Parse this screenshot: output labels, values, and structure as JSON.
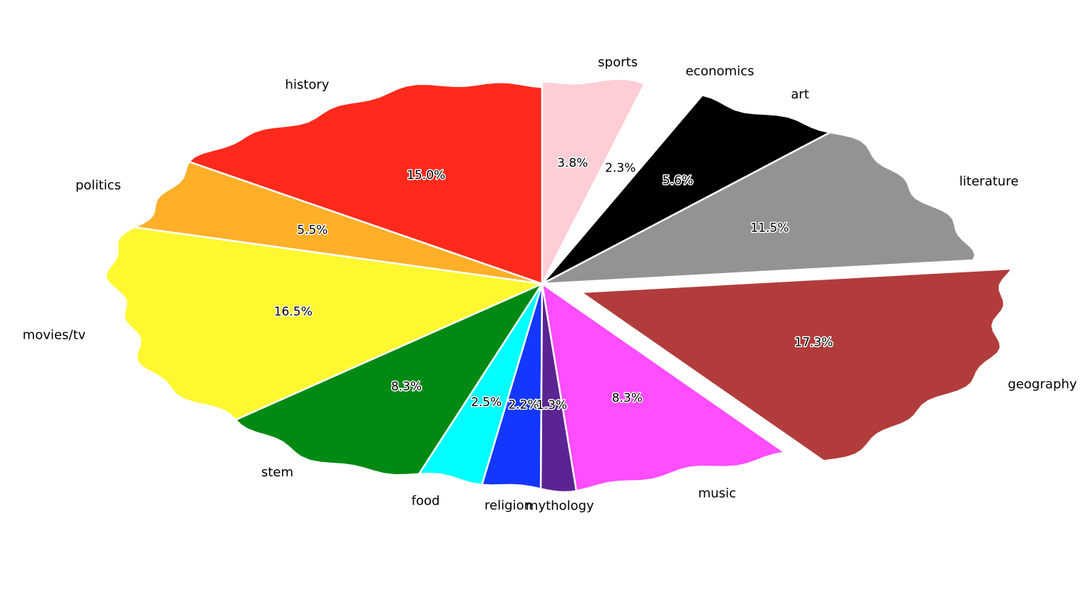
{
  "chart_data": {
    "type": "pie",
    "style": "xkcd",
    "start_angle_deg": 90,
    "direction": "counterclockwise",
    "slices": [
      {
        "label": "history",
        "value": 15.0,
        "pct_label": "15.0%",
        "color": "#ff2a1c",
        "explode": false
      },
      {
        "label": "politics",
        "value": 5.5,
        "pct_label": "5.5%",
        "color": "#ffaf28",
        "explode": false
      },
      {
        "label": "movies/tv",
        "value": 16.5,
        "pct_label": "16.5%",
        "color": "#fff830",
        "explode": false
      },
      {
        "label": "stem",
        "value": 8.3,
        "pct_label": "8.3%",
        "color": "#008a14",
        "explode": false
      },
      {
        "label": "food",
        "value": 2.5,
        "pct_label": "2.5%",
        "color": "#00ffff",
        "explode": false
      },
      {
        "label": "religion",
        "value": 2.2,
        "pct_label": "2.2%",
        "color": "#1437ff",
        "explode": false
      },
      {
        "label": "mythology",
        "value": 1.3,
        "pct_label": "1.3%",
        "color": "#5c2392",
        "explode": false
      },
      {
        "label": "music",
        "value": 8.3,
        "pct_label": "8.3%",
        "color": "#ff4dff",
        "explode": false
      },
      {
        "label": "geography",
        "value": 17.3,
        "pct_label": "17.3%",
        "color": "#b23c3c",
        "explode": true
      },
      {
        "label": "literature",
        "value": 11.5,
        "pct_label": "11.5%",
        "color": "#939393",
        "explode": false
      },
      {
        "label": "art",
        "value": 5.6,
        "pct_label": "5.6%",
        "color": "#000000",
        "explode": false
      },
      {
        "label": "economics",
        "value": 2.3,
        "pct_label": "2.3%",
        "color": "#ffffff",
        "explode": false
      },
      {
        "label": "sports",
        "value": 3.8,
        "pct_label": "3.8%",
        "color": "#ffcdd6",
        "explode": false
      }
    ]
  }
}
